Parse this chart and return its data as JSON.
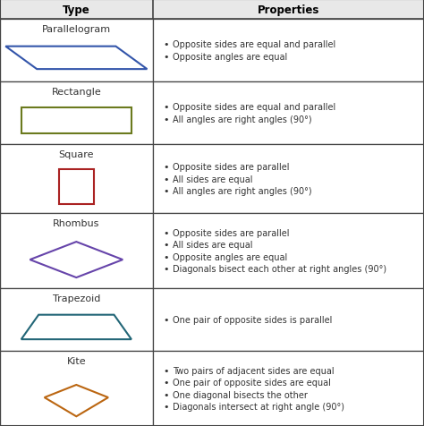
{
  "title_type": "Type",
  "title_props": "Properties",
  "col_split": 0.36,
  "bg_color": "#ffffff",
  "header_bg": "#e8e8e8",
  "grid_color": "#444444",
  "text_color": "#333333",
  "header_text_color": "#000000",
  "rows": [
    {
      "name": "Parallelogram",
      "shape_color": "#3355aa",
      "properties": [
        "Opposite sides are equal and parallel",
        "Opposite angles are equal"
      ]
    },
    {
      "name": "Rectangle",
      "shape_color": "#6b7a1e",
      "properties": [
        "Opposite sides are equal and parallel",
        "All angles are right angles (90°)"
      ]
    },
    {
      "name": "Square",
      "shape_color": "#aa2222",
      "properties": [
        "Opposite sides are parallel",
        "All sides are equal",
        "All angles are right angles (90°)"
      ]
    },
    {
      "name": "Rhombus",
      "shape_color": "#6644aa",
      "properties": [
        "Opposite sides are parallel",
        "All sides are equal",
        "Opposite angles are equal",
        "Diagonals bisect each other at right angles (90°)"
      ]
    },
    {
      "name": "Trapezoid",
      "shape_color": "#226677",
      "properties": [
        "One pair of opposite sides is parallel"
      ]
    },
    {
      "name": "Kite",
      "shape_color": "#bb6611",
      "properties": [
        "Two pairs of adjacent sides are equal",
        "One pair of opposite sides are equal",
        "One diagonal bisects the other",
        "Diagonals intersect at right angle (90°)"
      ]
    }
  ],
  "row_heights_rel": [
    1.0,
    1.0,
    1.1,
    1.2,
    1.0,
    1.2
  ],
  "font_size": 7.0,
  "name_font_size": 8.0,
  "header_font_size": 8.5
}
